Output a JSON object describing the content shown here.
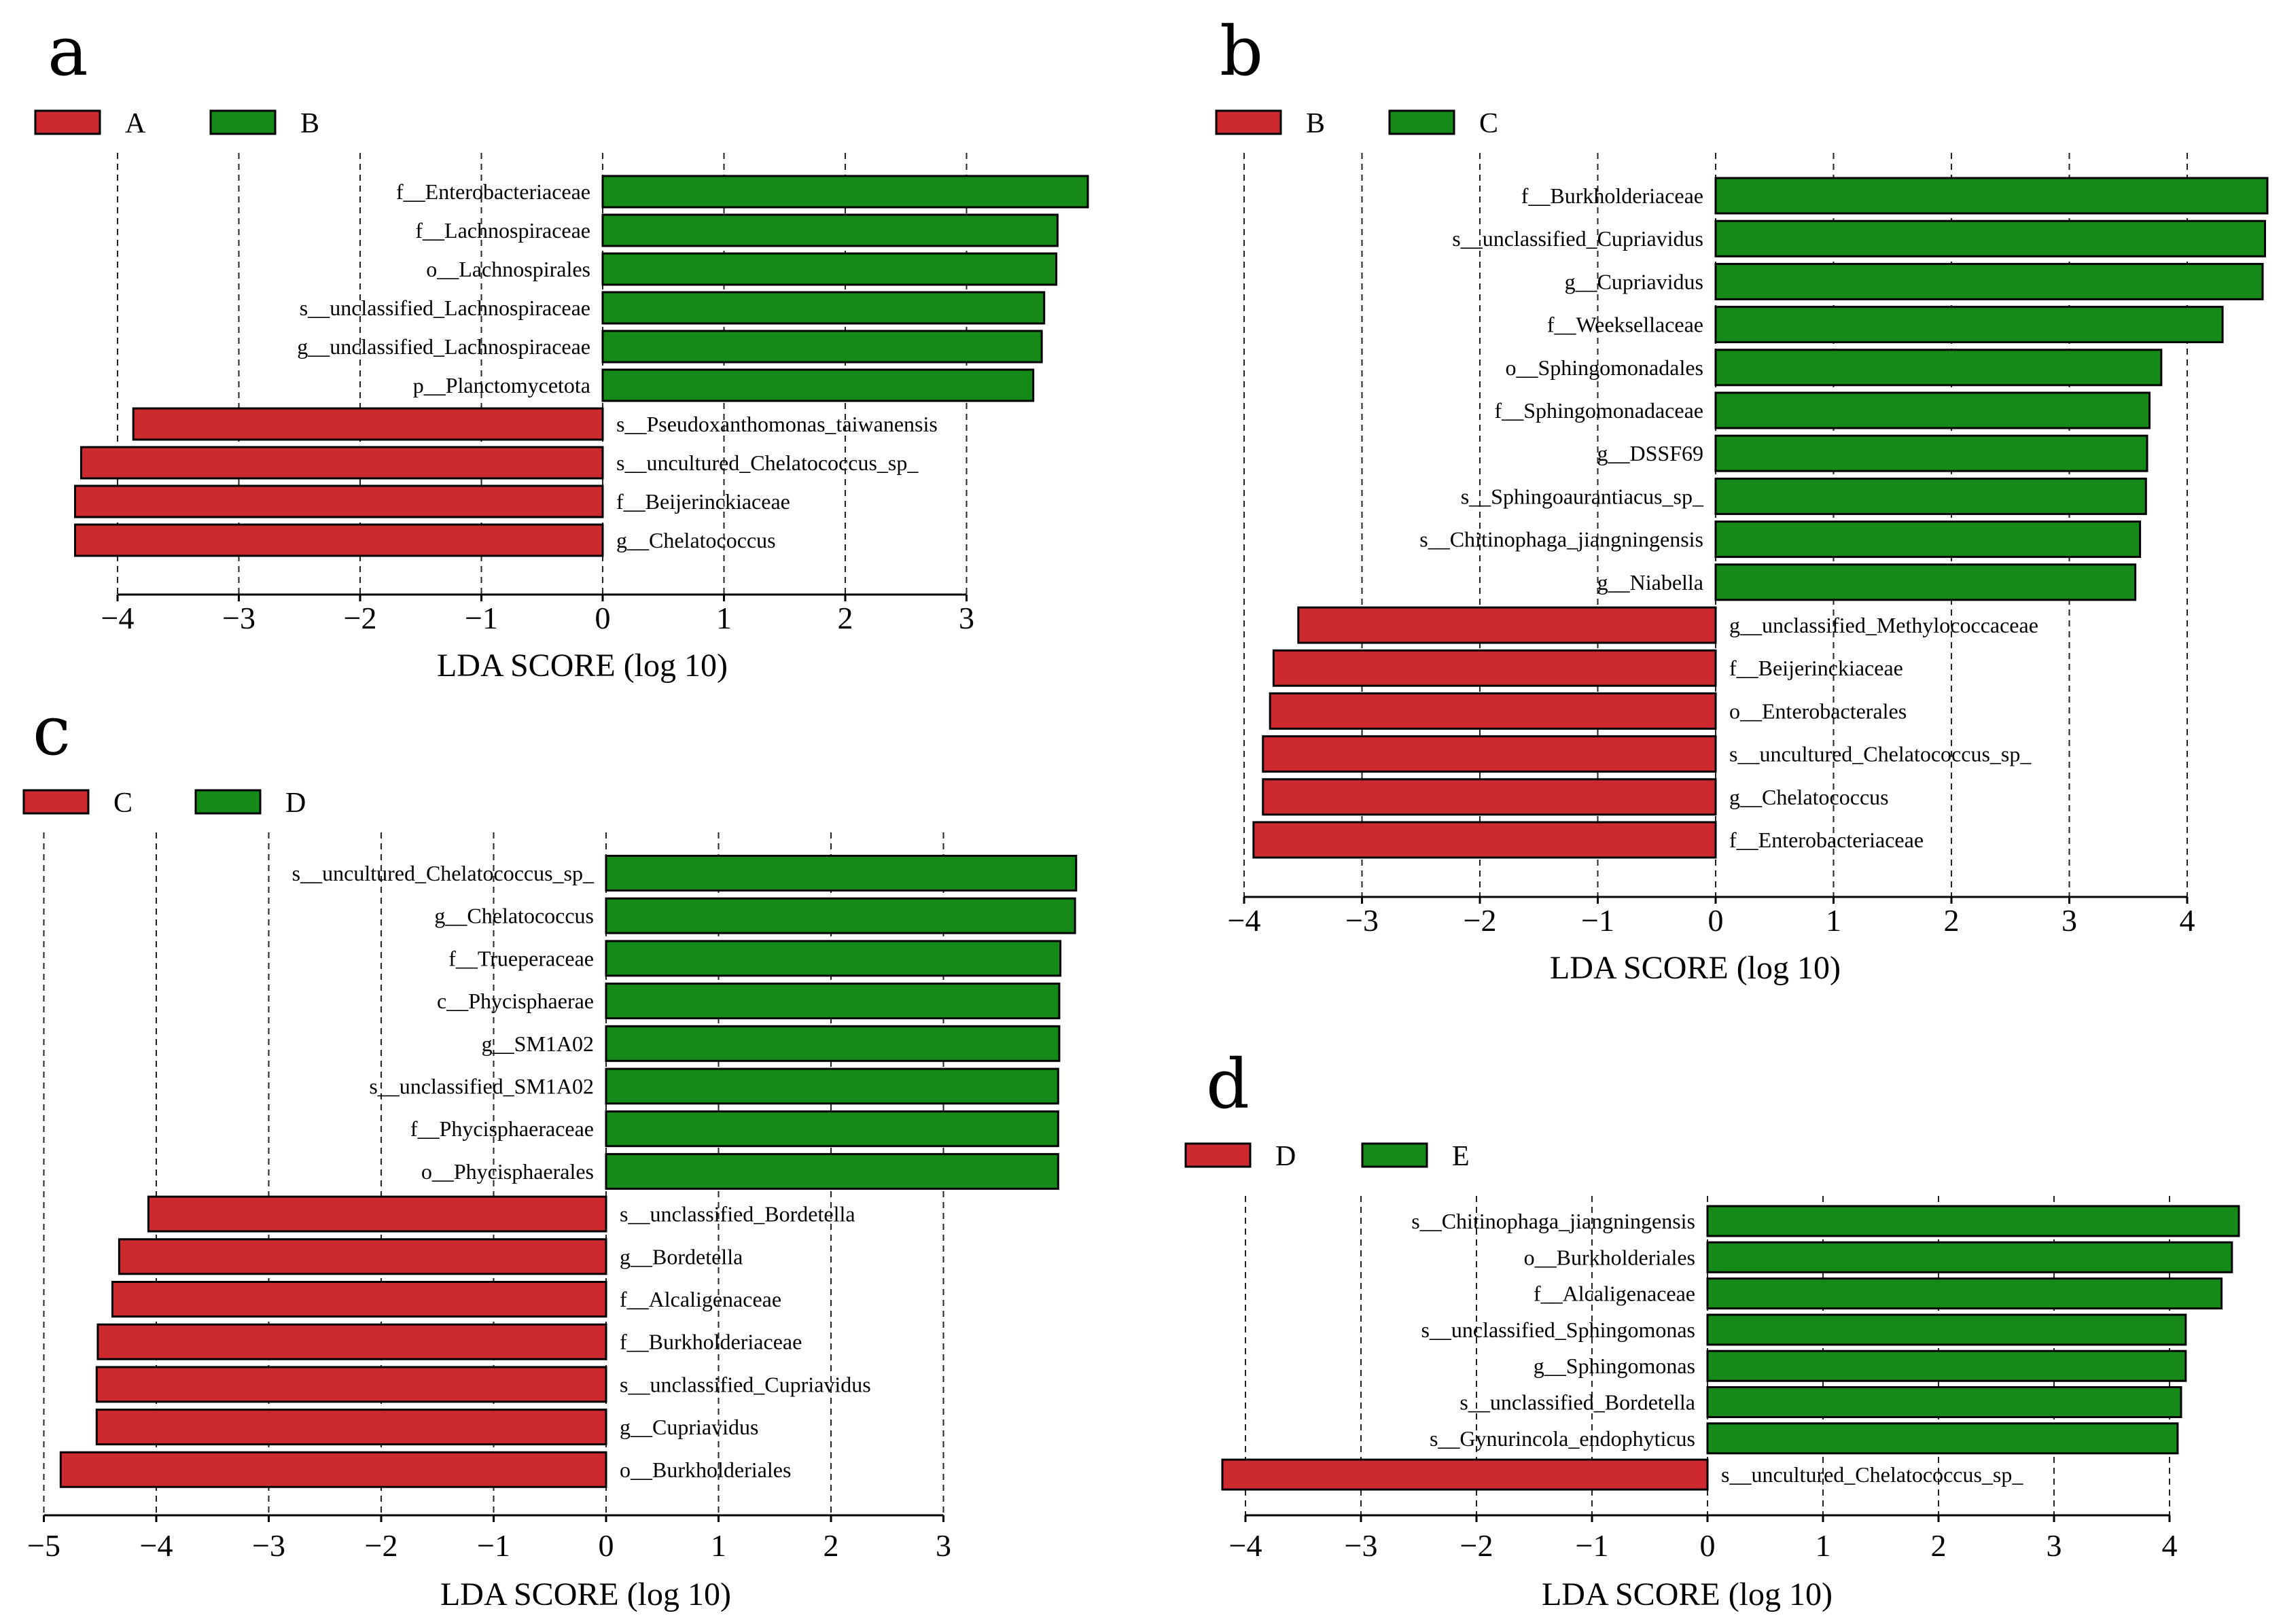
{
  "colors": {
    "red": "#cc2a2e",
    "green": "#158a19",
    "outline": "#000000"
  },
  "chart_data": [
    {
      "panel": "a",
      "type": "bar",
      "orientation": "horizontal",
      "xlabel": "LDA SCORE (log 10)",
      "xlim": [
        -4.4,
        4.0
      ],
      "ticks": [
        -4,
        -3,
        -2,
        -1,
        0,
        1,
        2,
        3
      ],
      "tick_labels": [
        "−4",
        "−3",
        "−2",
        "−1",
        "0",
        "1",
        "2",
        "3"
      ],
      "legend": [
        {
          "label": "A",
          "color": "red"
        },
        {
          "label": "B",
          "color": "green"
        }
      ],
      "bars": [
        {
          "label": "f__Enterobacteriaceae",
          "value": 4.0,
          "group": "B"
        },
        {
          "label": "f__Lachnospiraceae",
          "value": 3.75,
          "group": "B"
        },
        {
          "label": "o__Lachnospirales",
          "value": 3.74,
          "group": "B"
        },
        {
          "label": "s__unclassified_Lachnospiraceae",
          "value": 3.64,
          "group": "B"
        },
        {
          "label": "g__unclassified_Lachnospiraceae",
          "value": 3.62,
          "group": "B"
        },
        {
          "label": "p__Planctomycetota",
          "value": 3.55,
          "group": "B"
        },
        {
          "label": "s__Pseudoxanthomonas_taiwanensis",
          "value": -3.87,
          "group": "A"
        },
        {
          "label": "s__uncultured_Chelatococcus_sp_",
          "value": -4.3,
          "group": "A"
        },
        {
          "label": "f__Beijerinckiaceae",
          "value": -4.35,
          "group": "A"
        },
        {
          "label": "g__Chelatococcus",
          "value": -4.35,
          "group": "A"
        }
      ]
    },
    {
      "panel": "b",
      "type": "bar",
      "orientation": "horizontal",
      "xlabel": "LDA SCORE (log 10)",
      "xlim": [
        -4.0,
        4.7
      ],
      "ticks": [
        -4,
        -3,
        -2,
        -1,
        0,
        1,
        2,
        3,
        4
      ],
      "tick_labels": [
        "−4",
        "−3",
        "−2",
        "−1",
        "0",
        "1",
        "2",
        "3",
        "4"
      ],
      "legend": [
        {
          "label": "B",
          "color": "red"
        },
        {
          "label": "C",
          "color": "green"
        }
      ],
      "bars": [
        {
          "label": "f__Burkholderiaceae",
          "value": 4.68,
          "group": "C"
        },
        {
          "label": "s__unclassified_Cupriavidus",
          "value": 4.66,
          "group": "C"
        },
        {
          "label": "g__Cupriavidus",
          "value": 4.64,
          "group": "C"
        },
        {
          "label": "f__Weeksellaceae",
          "value": 4.3,
          "group": "C"
        },
        {
          "label": "o__Sphingomonadales",
          "value": 3.78,
          "group": "C"
        },
        {
          "label": "f__Sphingomonadaceae",
          "value": 3.68,
          "group": "C"
        },
        {
          "label": "g__DSSF69",
          "value": 3.66,
          "group": "C"
        },
        {
          "label": "s__Sphingoaurantiacus_sp_",
          "value": 3.65,
          "group": "C"
        },
        {
          "label": "s__Chitinophaga_jiangningensis",
          "value": 3.6,
          "group": "C"
        },
        {
          "label": "g__Niabella",
          "value": 3.56,
          "group": "C"
        },
        {
          "label": "g__unclassified_Methylococcaceae",
          "value": -3.54,
          "group": "B"
        },
        {
          "label": "f__Beijerinckiaceae",
          "value": -3.75,
          "group": "B"
        },
        {
          "label": "o__Enterobacterales",
          "value": -3.78,
          "group": "B"
        },
        {
          "label": "s__uncultured_Chelatococcus_sp_",
          "value": -3.84,
          "group": "B"
        },
        {
          "label": "g__Chelatococcus",
          "value": -3.84,
          "group": "B"
        },
        {
          "label": "f__Enterobacteriaceae",
          "value": -3.92,
          "group": "B"
        }
      ]
    },
    {
      "panel": "c",
      "type": "bar",
      "orientation": "horizontal",
      "xlabel": "LDA SCORE (log 10)",
      "xlim": [
        -5.0,
        4.2
      ],
      "ticks": [
        -5,
        -4,
        -3,
        -2,
        -1,
        0,
        1,
        2,
        3
      ],
      "tick_labels": [
        "−5",
        "−4",
        "−3",
        "−2",
        "−1",
        "0",
        "1",
        "2",
        "3"
      ],
      "legend": [
        {
          "label": "C",
          "color": "red"
        },
        {
          "label": "D",
          "color": "green"
        }
      ],
      "bars": [
        {
          "label": "s__uncultured_Chelatococcus_sp_",
          "value": 4.18,
          "group": "D"
        },
        {
          "label": "g__Chelatococcus",
          "value": 4.17,
          "group": "D"
        },
        {
          "label": "f__Trueperaceae",
          "value": 4.04,
          "group": "D"
        },
        {
          "label": "c__Phycisphaerae",
          "value": 4.03,
          "group": "D"
        },
        {
          "label": "g__SM1A02",
          "value": 4.03,
          "group": "D"
        },
        {
          "label": "s__unclassified_SM1A02",
          "value": 4.02,
          "group": "D"
        },
        {
          "label": "f__Phycisphaeraceae",
          "value": 4.02,
          "group": "D"
        },
        {
          "label": "o__Phycisphaerales",
          "value": 4.02,
          "group": "D"
        },
        {
          "label": "s__unclassified_Bordetella",
          "value": -4.07,
          "group": "C"
        },
        {
          "label": "g__Bordetella",
          "value": -4.33,
          "group": "C"
        },
        {
          "label": "f__Alcaligenaceae",
          "value": -4.39,
          "group": "C"
        },
        {
          "label": "f__Burkholderiaceae",
          "value": -4.52,
          "group": "C"
        },
        {
          "label": "s__unclassified_Cupriavidus",
          "value": -4.53,
          "group": "C"
        },
        {
          "label": "g__Cupriavidus",
          "value": -4.53,
          "group": "C"
        },
        {
          "label": "o__Burkholderiales",
          "value": -4.85,
          "group": "C"
        }
      ]
    },
    {
      "panel": "d",
      "type": "bar",
      "orientation": "horizontal",
      "xlabel": "LDA SCORE (log 10)",
      "xlim": [
        -4.2,
        4.6
      ],
      "ticks": [
        -4,
        -3,
        -2,
        -1,
        0,
        1,
        2,
        3,
        4
      ],
      "tick_labels": [
        "−4",
        "−3",
        "−2",
        "−1",
        "0",
        "1",
        "2",
        "3",
        "4"
      ],
      "legend": [
        {
          "label": "D",
          "color": "red"
        },
        {
          "label": "E",
          "color": "green"
        }
      ],
      "bars": [
        {
          "label": "s__Chitinophaga_jiangningensis",
          "value": 4.6,
          "group": "E"
        },
        {
          "label": "o__Burkholderiales",
          "value": 4.54,
          "group": "E"
        },
        {
          "label": "f__Alcaligenaceae",
          "value": 4.45,
          "group": "E"
        },
        {
          "label": "s__unclassified_Sphingomonas",
          "value": 4.14,
          "group": "E"
        },
        {
          "label": "g__Sphingomonas",
          "value": 4.14,
          "group": "E"
        },
        {
          "label": "s__unclassified_Bordetella",
          "value": 4.1,
          "group": "E"
        },
        {
          "label": "s__Gynurincola_endophyticus",
          "value": 4.07,
          "group": "E"
        },
        {
          "label": "s__uncultured_Chelatococcus_sp_",
          "value": -4.2,
          "group": "D"
        }
      ]
    }
  ]
}
